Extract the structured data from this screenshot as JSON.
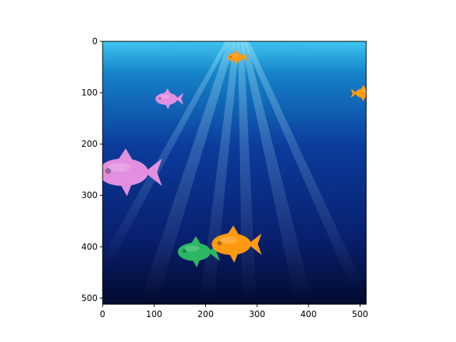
{
  "axes": {
    "x_ticks": [
      0,
      100,
      200,
      300,
      400,
      500
    ],
    "y_ticks": [
      0,
      100,
      200,
      300,
      400,
      500
    ],
    "xlim": [
      0,
      512
    ],
    "ylim": [
      0,
      512
    ],
    "y_inverted": true
  },
  "scene": {
    "background": "underwater-ocean-with-sun-rays",
    "colors": {
      "surface": "#6fe3ff",
      "mid": "#0b3c9c",
      "deep": "#020a2e"
    }
  },
  "fish": [
    {
      "id": "fish-orange-small-top",
      "x": 258,
      "y": 31,
      "size": 0.5,
      "color": "#ff9a12",
      "facing": "right"
    },
    {
      "id": "fish-orange-edge-right",
      "x": 508,
      "y": 101,
      "size": 0.55,
      "color": "#ff9a12",
      "facing": "left"
    },
    {
      "id": "fish-pink-small",
      "x": 124,
      "y": 112,
      "size": 0.7,
      "color": "#e28fe0",
      "facing": "right"
    },
    {
      "id": "fish-pink-large",
      "x": 40,
      "y": 255,
      "size": 1.6,
      "color": "#e28fe0",
      "facing": "right"
    },
    {
      "id": "fish-green",
      "x": 178,
      "y": 410,
      "size": 1.05,
      "color": "#2db765",
      "facing": "right"
    },
    {
      "id": "fish-orange-large",
      "x": 250,
      "y": 395,
      "size": 1.25,
      "color": "#ff9a12",
      "facing": "right"
    }
  ]
}
